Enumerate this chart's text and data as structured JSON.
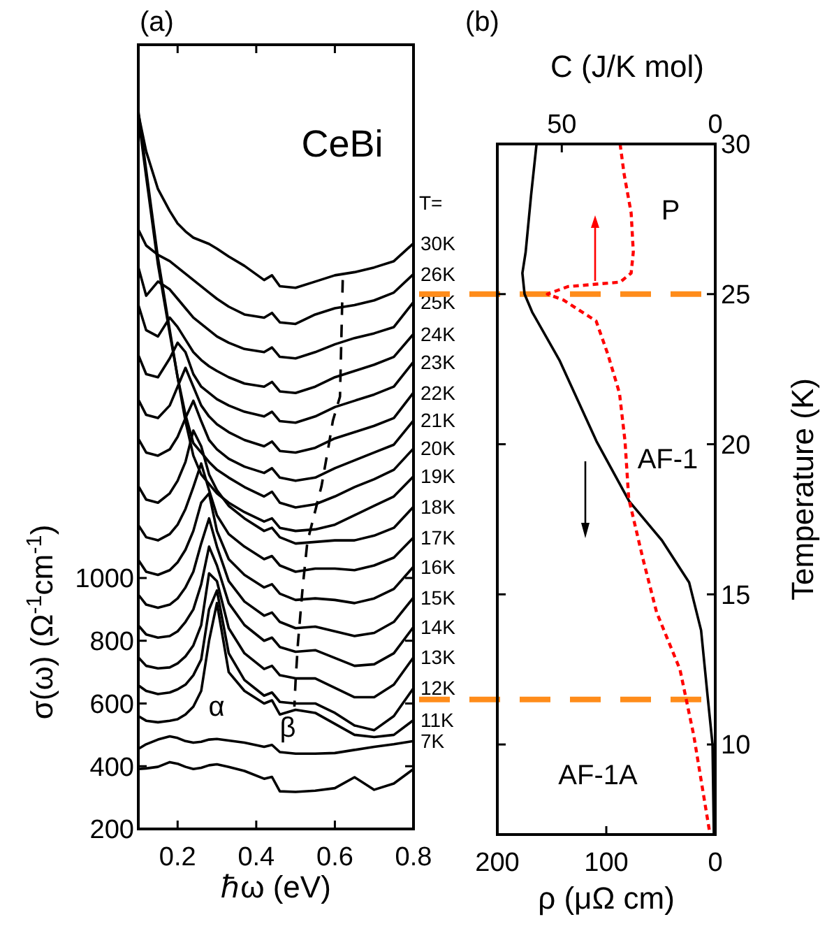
{
  "chart_data": [
    {
      "type": "line",
      "title": "(a)",
      "xlabel": "ℏω (eV)",
      "ylabel": "σ(ω) (Ω$^{-1}$cm$^{-1}$)",
      "x": [
        0.1,
        0.12,
        0.15,
        0.18,
        0.2,
        0.22,
        0.24,
        0.26,
        0.28,
        0.3,
        0.33,
        0.37,
        0.42,
        0.44,
        0.46,
        0.5,
        0.55,
        0.6,
        0.65,
        0.7,
        0.75,
        0.8
      ],
      "xlim": [
        0.1,
        0.8
      ],
      "xticks": [
        0.2,
        0.4,
        0.6,
        0.8
      ],
      "ylim": [
        200,
        2700
      ],
      "yticks": [
        200,
        400,
        600,
        800,
        1000
      ],
      "annotations": [
        "CeBi",
        "T=",
        "α",
        "β"
      ],
      "legend": "right",
      "series": [
        {
          "name": "30K",
          "color": "#000000",
          "values": [
            2480,
            2360,
            2240,
            2170,
            2130,
            2105,
            2085,
            2075,
            2065,
            2050,
            2025,
            1995,
            1950,
            1965,
            1930,
            1925,
            1945,
            1965,
            1975,
            1990,
            2010,
            2067
          ]
        },
        {
          "name": "26K",
          "color": "#000000",
          "values": [
            2111,
            2060,
            2030,
            2010,
            1990,
            1970,
            1950,
            1930,
            1910,
            1890,
            1865,
            1840,
            1830,
            1845,
            1815,
            1810,
            1840,
            1860,
            1870,
            1885,
            1910,
            1969
          ]
        },
        {
          "name": "25K",
          "color": "#000000",
          "values": [
            1991,
            1900,
            1945,
            1920,
            1890,
            1860,
            1830,
            1810,
            1790,
            1770,
            1750,
            1730,
            1720,
            1735,
            1705,
            1700,
            1720,
            1745,
            1765,
            1780,
            1800,
            1880
          ]
        },
        {
          "name": "24K",
          "color": "#000000",
          "values": [
            1871,
            1790,
            1770,
            1830,
            1800,
            1760,
            1720,
            1695,
            1675,
            1660,
            1640,
            1620,
            1610,
            1625,
            1595,
            1590,
            1610,
            1640,
            1660,
            1680,
            1705,
            1778
          ]
        },
        {
          "name": "23K",
          "color": "#000000",
          "values": [
            1711,
            1650,
            1640,
            1700,
            1750,
            1720,
            1650,
            1610,
            1590,
            1570,
            1550,
            1530,
            1515,
            1530,
            1500,
            1495,
            1515,
            1545,
            1565,
            1585,
            1610,
            1689
          ]
        },
        {
          "name": "22K",
          "color": "#000000",
          "values": [
            1569,
            1520,
            1510,
            1550,
            1610,
            1670,
            1610,
            1550,
            1515,
            1490,
            1465,
            1440,
            1420,
            1435,
            1405,
            1400,
            1415,
            1445,
            1465,
            1485,
            1510,
            1591
          ]
        },
        {
          "name": "21K",
          "color": "#000000",
          "values": [
            1444,
            1400,
            1390,
            1410,
            1450,
            1510,
            1565,
            1500,
            1440,
            1410,
            1380,
            1355,
            1335,
            1350,
            1320,
            1310,
            1320,
            1350,
            1375,
            1400,
            1425,
            1502
          ]
        },
        {
          "name": "20K",
          "color": "#000000",
          "values": [
            2470,
            2280,
            2000,
            1780,
            1640,
            1520,
            1430,
            1400,
            1370,
            1345,
            1320,
            1290,
            1260,
            1275,
            1240,
            1225,
            1235,
            1260,
            1290,
            1315,
            1345,
            1413
          ]
        },
        {
          "name": "19K",
          "color": "#000000",
          "values": [
            2490,
            2300,
            2020,
            1790,
            1640,
            1500,
            1390,
            1330,
            1300,
            1270,
            1240,
            1210,
            1180,
            1190,
            1160,
            1150,
            1155,
            1170,
            1200,
            1230,
            1260,
            1324
          ]
        },
        {
          "name": "18K",
          "color": "#000000",
          "values": [
            1293,
            1250,
            1240,
            1270,
            1310,
            1370,
            1470,
            1420,
            1330,
            1280,
            1230,
            1190,
            1150,
            1160,
            1130,
            1110,
            1115,
            1120,
            1120,
            1135,
            1160,
            1227
          ]
        },
        {
          "name": "17K",
          "color": "#000000",
          "values": [
            1169,
            1130,
            1120,
            1140,
            1170,
            1220,
            1290,
            1365,
            1280,
            1200,
            1140,
            1100,
            1060,
            1070,
            1040,
            1020,
            1030,
            1030,
            1025,
            1040,
            1065,
            1129
          ]
        },
        {
          "name": "16K",
          "color": "#000000",
          "values": [
            1058,
            1020,
            1010,
            1025,
            1050,
            1090,
            1150,
            1240,
            1270,
            1150,
            1060,
            1010,
            970,
            980,
            950,
            930,
            935,
            930,
            920,
            935,
            965,
            1036
          ]
        },
        {
          "name": "15K",
          "color": "#000000",
          "values": [
            947,
            915,
            905,
            915,
            935,
            970,
            1020,
            1110,
            1190,
            1100,
            990,
            925,
            880,
            890,
            860,
            840,
            845,
            830,
            815,
            825,
            860,
            938
          ]
        },
        {
          "name": "14K",
          "color": "#000000",
          "values": [
            849,
            820,
            810,
            815,
            830,
            860,
            900,
            980,
            1100,
            1040,
            920,
            850,
            800,
            810,
            780,
            765,
            770,
            745,
            720,
            725,
            760,
            844
          ]
        },
        {
          "name": "13K",
          "color": "#000000",
          "values": [
            747,
            720,
            712,
            715,
            728,
            750,
            785,
            850,
            1015,
            990,
            840,
            760,
            710,
            720,
            690,
            680,
            680,
            650,
            620,
            620,
            660,
            747
          ]
        },
        {
          "name": "12K",
          "color": "#000000",
          "values": [
            658,
            640,
            630,
            635,
            645,
            660,
            690,
            740,
            900,
            960,
            760,
            675,
            625,
            635,
            605,
            600,
            600,
            570,
            530,
            515,
            560,
            649
          ]
        },
        {
          "name": "11K",
          "color": "#000000",
          "values": [
            560,
            545,
            540,
            545,
            550,
            565,
            590,
            640,
            800,
            920,
            700,
            640,
            600,
            610,
            565,
            580,
            570,
            535,
            500,
            493,
            500,
            547
          ]
        },
        {
          "name": "7K",
          "color": "#000000",
          "values": [
            455,
            470,
            485,
            495,
            490,
            480,
            475,
            478,
            485,
            487,
            482,
            475,
            462,
            468,
            445,
            440,
            440,
            442,
            452,
            462,
            470,
            480
          ]
        },
        {
          "color": "#000000",
          "values": [
            391,
            393,
            398,
            413,
            408,
            398,
            391,
            395,
            403,
            406,
            398,
            385,
            360,
            366,
            320,
            318,
            322,
            330,
            365,
            325,
            345,
            391
          ]
        },
        {
          "color": "#000000",
          "line_style": "dashed",
          "x": [
            0.62,
            0.613,
            0.595,
            0.583,
            0.566,
            0.548,
            0.53,
            0.518,
            0.506,
            0.5,
            0.497
          ],
          "values": [
            1950,
            1578,
            1502,
            1413,
            1293,
            1204,
            1115,
            969,
            791,
            671,
            590
          ]
        }
      ]
    },
    {
      "type": "line",
      "title": "(b)",
      "xlabel": "ρ (μΩ cm)",
      "x2label": "C (J/K mol)",
      "ylabel": "Temperature (K)",
      "xlim": [
        200,
        0
      ],
      "xticks": [
        200,
        100,
        0
      ],
      "x2lim": [
        71,
        0
      ],
      "x2ticks": [
        50,
        0
      ],
      "ylim": [
        7,
        30
      ],
      "yticks": [
        10,
        15,
        20,
        25,
        30
      ],
      "ref_lines": [
        {
          "axis": "y",
          "value": 25,
          "color": "#ff8c1a",
          "line_style": "dashed"
        },
        {
          "axis": "y",
          "value": 11.5,
          "color": "#ff8c1a",
          "line_style": "dashed"
        }
      ],
      "annotations": [
        "P",
        "AF-1",
        "AF-1A"
      ],
      "series": [
        {
          "color": "#000000",
          "x": [
            164,
            169,
            174,
            177,
            175,
            168,
            143,
            109,
            79,
            49,
            24,
            13,
            7,
            2.5,
            1.3
          ],
          "values": [
            30,
            28.3,
            26.4,
            25.7,
            25,
            24.4,
            22.8,
            20.1,
            18.1,
            16.8,
            15.4,
            13.8,
            11.6,
            10,
            7
          ]
        },
        {
          "color": "#ff0000",
          "axis": "x2",
          "line_style": "dotted",
          "x": [
            31,
            29.7,
            27.4,
            26.7,
            27.4,
            31,
            48,
            54.7,
            49.4,
            38.8,
            35,
            31.2,
            29.4,
            28.2,
            23.6,
            19.1,
            11.5,
            7,
            1.7
          ],
          "values": [
            30,
            29,
            27.7,
            26.4,
            25.7,
            25.4,
            25.25,
            25,
            24.8,
            24.1,
            23,
            21.7,
            20.1,
            18.2,
            16.2,
            14.4,
            12.5,
            10.3,
            7
          ]
        }
      ]
    }
  ]
}
